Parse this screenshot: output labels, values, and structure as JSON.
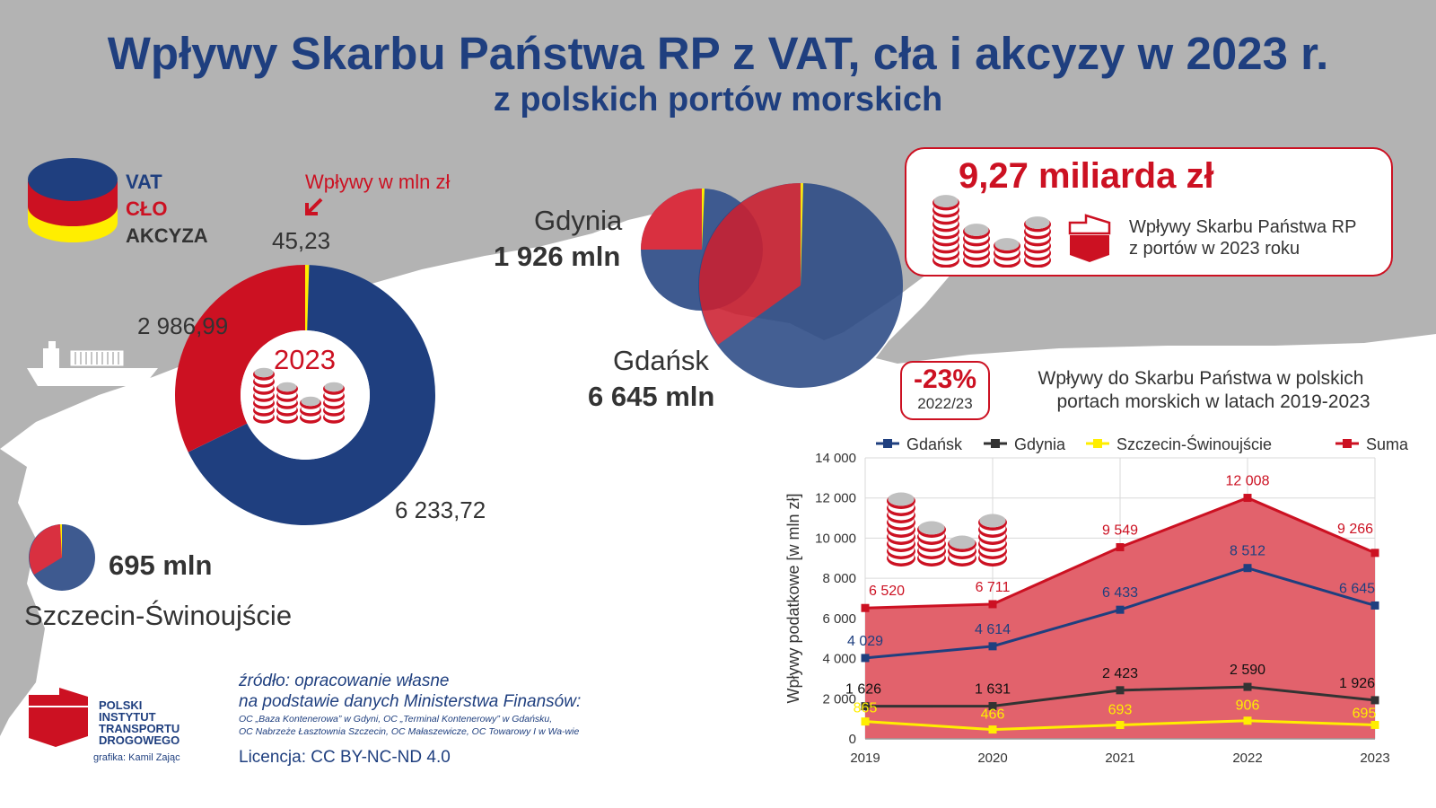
{
  "header": {
    "title": "Wpływy Skarbu Państwa RP z VAT, cła i akcyzy w 2023 r.",
    "subtitle": "z polskich portów morskich"
  },
  "colors": {
    "vat": "#1f3f7f",
    "clo": "#cc1122",
    "akcyza": "#ffee00",
    "land": "#ffffff",
    "sea": "#b3b3b3",
    "brand": "#1f3f7f",
    "accent": "#cc1122"
  },
  "tax_legend": {
    "vat": "VAT",
    "clo": "CŁO",
    "akcyza": "AKCYZA",
    "unit_note": "Wpływy w mln zł"
  },
  "donut": {
    "year": "2023",
    "vat_label": "6 233,72",
    "clo_label": "2 986,99",
    "akcyza_label": "45,23"
  },
  "ports": {
    "gdynia": {
      "name": "Gdynia",
      "amount": "1 926 mln"
    },
    "gdansk": {
      "name": "Gdańsk",
      "amount": "6 645 mln"
    },
    "szczecin": {
      "name": "Szczecin-Świnoujście",
      "amount": "695 mln"
    }
  },
  "total_box": {
    "amount": "9,27 miliarda zł",
    "desc_line1": "Wpływy Skarbu Państwa RP",
    "desc_line2": "z portów w 2023 roku"
  },
  "change_badge": {
    "value": "-23%",
    "period": "2022/23"
  },
  "footer": {
    "brand_line1": "POLSKI",
    "brand_line2": "INSTYTUT",
    "brand_line3": "TRANSPORTU",
    "brand_line4": "DROGOWEGO",
    "credit": "grafika: Kamil Zając",
    "source_line1": "źródło: opracowanie własne",
    "source_line2": "na podstawie danych Ministerstwa Finansów:",
    "source_detail1": "OC „Baza Kontenerowa” w Gdyni, OC „Terminal Kontenerowy” w Gdańsku,",
    "source_detail2": "OC Nabrzeże Łasztownia Szczecin, OC Małaszewicze, OC Towarowy I w Wa-wie",
    "license": "Licencja: CC BY-NC-ND 4.0"
  },
  "chart_data": [
    {
      "type": "pie",
      "categories": [
        "VAT",
        "CŁO",
        "AKCYZA"
      ],
      "values": [
        6233.72,
        2986.99,
        45.23
      ],
      "title": "",
      "center_label": "2023",
      "unit": "Wpływy w mln zł",
      "colors": [
        "#1f3f7f",
        "#cc1122",
        "#ffee00"
      ]
    },
    {
      "type": "line",
      "title": "Wpływy do Skarbu Państwa w polskich portach morskich w latach 2019-2023",
      "x": [
        "2019",
        "2020",
        "2021",
        "2022",
        "2023"
      ],
      "ylabel": "Wpływy podatkowe [w mln zł]",
      "xlabel": "",
      "ylim": [
        0,
        14000
      ],
      "yticks": [
        "0",
        "2 000",
        "4 000",
        "6 000",
        "8 000",
        "10 000",
        "12 000",
        "14 000"
      ],
      "grid": true,
      "legend_position": "top",
      "series": [
        {
          "name": "Gdańsk",
          "color": "#1f3f7f",
          "values": [
            4029,
            4614,
            6433,
            8512,
            6645
          ],
          "labels": [
            "4 029",
            "4 614",
            "6 433",
            "8 512",
            "6 645"
          ]
        },
        {
          "name": "Gdynia",
          "color": "#333333",
          "values": [
            1626,
            1631,
            2423,
            2590,
            1926
          ],
          "labels": [
            "1 626",
            "1 631",
            "2 423",
            "2 590",
            "1 926"
          ]
        },
        {
          "name": "Szczecin-Świnoujście",
          "color": "#ffee00",
          "values": [
            865,
            466,
            693,
            906,
            695
          ],
          "labels": [
            "865",
            "466",
            "693",
            "906",
            "695"
          ]
        },
        {
          "name": "Suma",
          "color": "#cc1122",
          "values": [
            6520,
            6711,
            9549,
            12008,
            9266
          ],
          "labels": [
            "6 520",
            "6 711",
            "9 549",
            "12 008",
            "9 266"
          ]
        }
      ]
    }
  ]
}
